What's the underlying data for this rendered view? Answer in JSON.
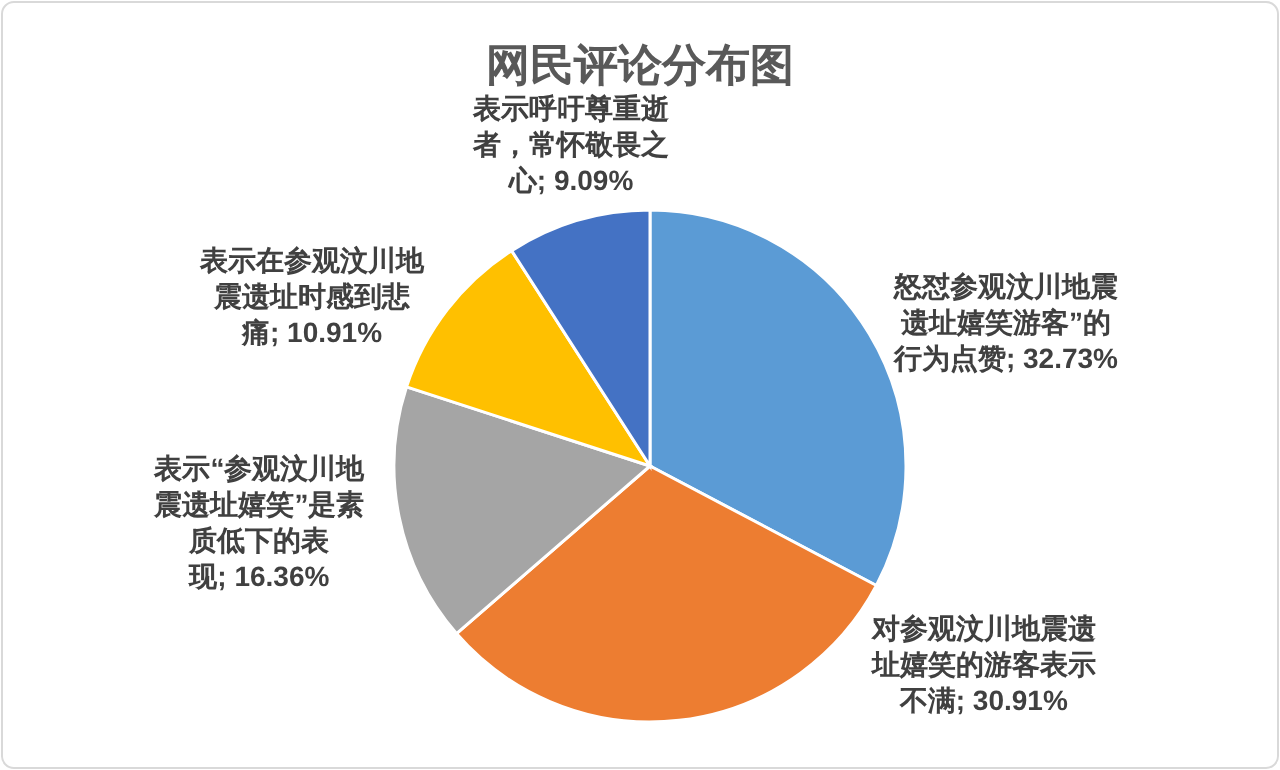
{
  "chart_data": {
    "type": "pie",
    "title": "网民评论分布图",
    "categories": [
      "怒怼参观汶川地震遗址嬉笑游客”的行为点赞",
      "对参观汶川地震遗址嬉笑的游客表示不满",
      "表示“参观汶川地震遗址嬉笑”是素质低下的表现",
      "表示在参观汶川地震遗址时感到悲痛",
      "表示呼吁尊重逝者，常怀敬畏之心"
    ],
    "values": [
      32.73,
      30.91,
      16.36,
      10.91,
      9.09
    ],
    "value_labels": [
      "32.73%",
      "30.91%",
      "16.36%",
      "10.91%",
      "9.09%"
    ],
    "colors": [
      "#5b9bd5",
      "#ed7d31",
      "#a5a5a5",
      "#ffc000",
      "#4472c4"
    ]
  }
}
